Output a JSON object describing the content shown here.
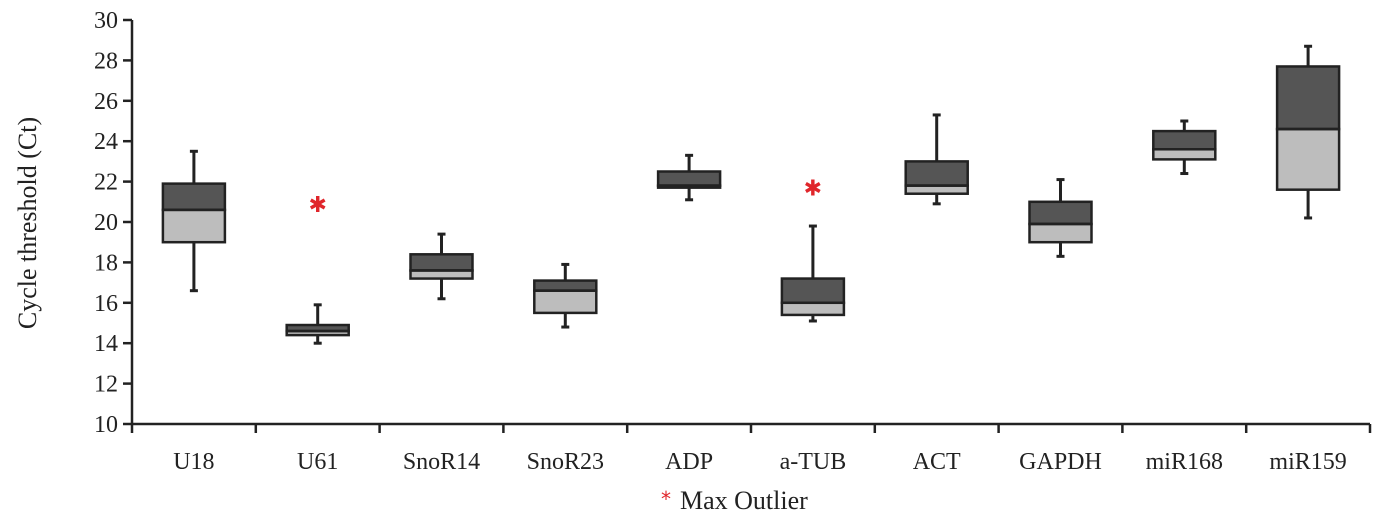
{
  "chart_data": {
    "type": "box",
    "ylabel": "Cycle threshold (Ct)",
    "ylim": [
      10,
      30
    ],
    "yticks": [
      10,
      12,
      14,
      16,
      18,
      20,
      22,
      24,
      26,
      28,
      30
    ],
    "grid": false,
    "legend": {
      "position": "bottom-center",
      "entries": [
        {
          "symbol": "*",
          "label": "Max Outlier"
        }
      ]
    },
    "categories": [
      "U18",
      "U61",
      "SnoR14",
      "SnoR23",
      "ADP",
      "a-TUB",
      "ACT",
      "GAPDH",
      "miR168",
      "miR159"
    ],
    "boxes": [
      {
        "category": "U18",
        "min": 16.6,
        "q1": 19.0,
        "median": 20.6,
        "q3": 21.9,
        "max": 23.5,
        "outlier": null
      },
      {
        "category": "U61",
        "min": 14.0,
        "q1": 14.4,
        "median": 14.6,
        "q3": 14.9,
        "max": 15.9,
        "outlier": 20.9
      },
      {
        "category": "SnoR14",
        "min": 16.2,
        "q1": 17.2,
        "median": 17.6,
        "q3": 18.4,
        "max": 19.4,
        "outlier": null
      },
      {
        "category": "SnoR23",
        "min": 14.8,
        "q1": 15.5,
        "median": 16.6,
        "q3": 17.1,
        "max": 17.9,
        "outlier": null
      },
      {
        "category": "ADP",
        "min": 21.1,
        "q1": 21.7,
        "median": 21.8,
        "q3": 22.5,
        "max": 23.3,
        "outlier": null
      },
      {
        "category": "a-TUB",
        "min": 15.1,
        "q1": 15.4,
        "median": 16.0,
        "q3": 17.2,
        "max": 19.8,
        "outlier": 21.7
      },
      {
        "category": "ACT",
        "min": 20.9,
        "q1": 21.4,
        "median": 21.8,
        "q3": 23.0,
        "max": 25.3,
        "outlier": null
      },
      {
        "category": "GAPDH",
        "min": 18.3,
        "q1": 19.0,
        "median": 19.9,
        "q3": 21.0,
        "max": 22.1,
        "outlier": null
      },
      {
        "category": "miR168",
        "min": 22.4,
        "q1": 23.1,
        "median": 23.6,
        "q3": 24.5,
        "max": 25.0,
        "outlier": null
      },
      {
        "category": "miR159",
        "min": 20.2,
        "q1": 21.6,
        "median": 24.6,
        "q3": 27.7,
        "max": 28.7,
        "outlier": null
      }
    ],
    "colors": {
      "upper_box": "#555555",
      "lower_box": "#bdbdbd",
      "stroke": "#222222",
      "outlier": "#e0262b"
    }
  }
}
